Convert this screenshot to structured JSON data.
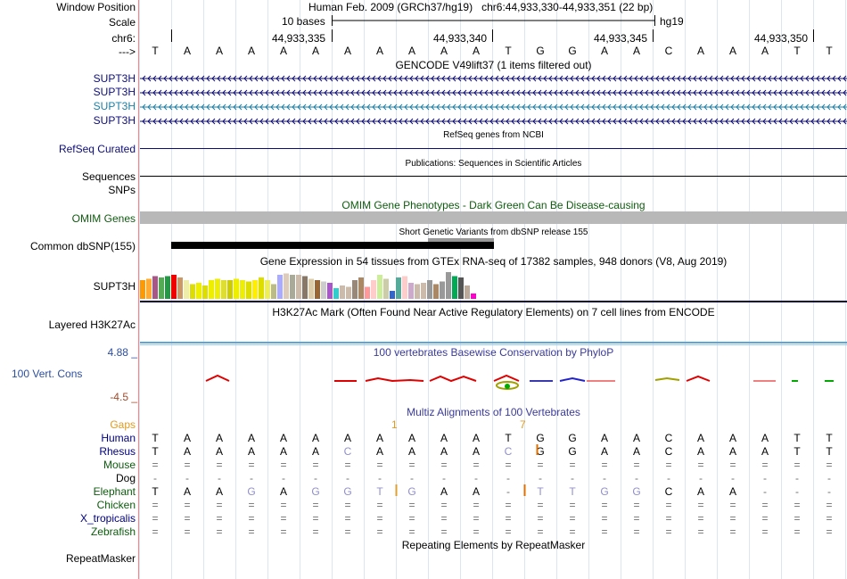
{
  "header": {
    "window_position_label": "Window Position",
    "window_position_text": "Human Feb. 2009 (GRCh37/hg19)   chr6:44,933,330-44,933,351 (22 bp)",
    "scale_label": "Scale",
    "scale_text": "10 bases",
    "assembly": "hg19",
    "chrom_label": "chr6:",
    "positions": [
      "44,933,335",
      "44,933,340",
      "44,933,345",
      "44,933,350"
    ],
    "strand_label": "--->"
  },
  "sequence": [
    "T",
    "A",
    "A",
    "A",
    "A",
    "A",
    "A",
    "A",
    "A",
    "A",
    "A",
    "T",
    "G",
    "G",
    "A",
    "A",
    "C",
    "A",
    "A",
    "A",
    "T",
    "T"
  ],
  "tracks": {
    "gencode": {
      "title": "GENCODE V49lift37 (1 items filtered out)",
      "genes": [
        {
          "name": "SUPT3H",
          "color": "#0c0c78"
        },
        {
          "name": "SUPT3H",
          "color": "#0c0c78"
        },
        {
          "name": "SUPT3H",
          "color": "#1a7fa6"
        },
        {
          "name": "SUPT3H",
          "color": "#0c0c78"
        }
      ]
    },
    "refseq": {
      "title": "RefSeq genes from NCBI",
      "label": "RefSeq Curated",
      "color": "#0c0c78"
    },
    "publications": {
      "title": "Publications: Sequences in Scientific Articles",
      "label": "Sequences"
    },
    "snps": {
      "label": "SNPs"
    },
    "omim": {
      "title": "OMIM Gene Phenotypes - Dark Green Can Be Disease-causing",
      "label": "OMIM Genes",
      "color": "#0f5b0f"
    },
    "dbsnp": {
      "title": "Short Genetic Variants from dbSNP release 155",
      "label": "Common dbSNP(155)"
    },
    "gtex": {
      "title": "Gene Expression in 54 tissues from GTEx RNA-seq of 17382 samples, 948 donors (V8, Aug 2019)",
      "label": "SUPT3H",
      "levels": [
        0.7,
        0.75,
        0.85,
        0.8,
        0.85,
        0.9,
        0.8,
        0.7,
        0.55,
        0.6,
        0.5,
        0.7,
        0.75,
        0.7,
        0.7,
        0.75,
        0.7,
        0.65,
        0.7,
        0.8,
        0.7,
        0.55,
        0.9,
        0.95,
        0.9,
        0.9,
        0.85,
        0.75,
        0.7,
        0.65,
        0.6,
        0.4,
        0.5,
        0.45,
        0.7,
        0.8,
        0.45,
        0.7,
        0.9,
        0.75,
        0.3,
        0.8,
        0.85,
        0.6,
        0.55,
        0.6,
        0.7,
        0.55,
        0.65,
        1.0,
        0.85,
        0.8,
        0.5,
        0.2
      ],
      "colors": [
        "#ff9900",
        "#ffaa33",
        "#aa5588",
        "#55aa55",
        "#229944",
        "#ee0000",
        "#cc9966",
        "#eeeeaa",
        "#dddd00",
        "#eeee00",
        "#dddd00",
        "#eeee00",
        "#eeee00",
        "#dddd33",
        "#cccc00",
        "#eeee00",
        "#eeee00",
        "#dddd00",
        "#ffee00",
        "#dddd00",
        "#eeee55",
        "#bbbb88",
        "#aaaaff",
        "#ddccbb",
        "#aaaa99",
        "#ccbbaa",
        "#887766",
        "#ddccaa",
        "#996633",
        "#cccccc",
        "#aa55cc",
        "#33cccc",
        "#ccbbaa",
        "#ccbbaa",
        "#998877",
        "#aa8866",
        "#ff9999",
        "#ffcccc",
        "#ccee99",
        "#ccccaa",
        "#3366cc",
        "#55aa99",
        "#ffcccc",
        "#ccaacc",
        "#ccbbaa",
        "#ccbbaa",
        "#999999",
        "#aa8866",
        "#999999",
        "#999999",
        "#00aa55",
        "#555555",
        "#bbaa99",
        "#ff00cc"
      ]
    },
    "h3k27ac": {
      "title": "H3K27Ac Mark (Often Found Near Active Regulatory Elements) on 7 cell lines from ENCODE",
      "label": "Layered H3K27Ac"
    },
    "phylop": {
      "title": "100 vertebrates Basewise Conservation by PhyloP",
      "label": "100 Vert. Cons",
      "max_label": "4.88 _",
      "min_label": "-4.5 _",
      "max_color": "#2c4ea0",
      "min_color": "#a04b2c"
    },
    "multiz": {
      "title": "Multiz Alignments of 100 Vertebrates",
      "gaps_label": "Gaps",
      "gap_marks": [
        {
          "text": "1",
          "index": 7
        },
        {
          "text": "7",
          "index": 11
        }
      ],
      "species": [
        {
          "name": "Human",
          "color": "#000080",
          "bases": [
            "T",
            "A",
            "A",
            "A",
            "A",
            "A",
            "A",
            "A",
            "A",
            "A",
            "A",
            "T",
            "G",
            "G",
            "A",
            "A",
            "C",
            "A",
            "A",
            "A",
            "T",
            "T"
          ]
        },
        {
          "name": "Rhesus",
          "color": "#000080",
          "bases": [
            "T",
            "A",
            "A",
            "A",
            "A",
            "A",
            "C",
            "A",
            "A",
            "A",
            "A",
            "C",
            "G",
            "G",
            "A",
            "A",
            "C",
            "A",
            "A",
            "A",
            "T",
            "T"
          ]
        },
        {
          "name": "Mouse",
          "color": "#0c5c0c",
          "bases": [
            "=",
            "=",
            "=",
            "=",
            "=",
            "=",
            "=",
            "=",
            "=",
            "=",
            "=",
            "=",
            "=",
            "=",
            "=",
            "=",
            "=",
            "=",
            "=",
            "=",
            "=",
            "="
          ]
        },
        {
          "name": "Dog",
          "color": "#000000",
          "bases": [
            "-",
            "-",
            "-",
            "-",
            "-",
            "-",
            "-",
            "-",
            "-",
            "-",
            "-",
            "-",
            "-",
            "-",
            "-",
            "-",
            "-",
            "-",
            "-",
            "-",
            "-",
            "-"
          ]
        },
        {
          "name": "Elephant",
          "color": "#0c5c0c",
          "bases": [
            "T",
            "A",
            "A",
            "G",
            "A",
            "G",
            "G",
            "T",
            "G",
            "A",
            "A",
            "-",
            "T",
            "T",
            "G",
            "G",
            "C",
            "A",
            "A",
            "-",
            "-",
            "-"
          ]
        },
        {
          "name": "Chicken",
          "color": "#0c5c0c",
          "bases": [
            "=",
            "=",
            "=",
            "=",
            "=",
            "=",
            "=",
            "=",
            "=",
            "=",
            "=",
            "=",
            "=",
            "=",
            "=",
            "=",
            "=",
            "=",
            "=",
            "=",
            "=",
            "="
          ]
        },
        {
          "name": "X_tropicalis",
          "color": "#000080",
          "bases": [
            "=",
            "=",
            "=",
            "=",
            "=",
            "=",
            "=",
            "=",
            "=",
            "=",
            "=",
            "=",
            "=",
            "=",
            "=",
            "=",
            "=",
            "=",
            "=",
            "=",
            "=",
            "="
          ]
        },
        {
          "name": "Zebrafish",
          "color": "#0c5c0c",
          "bases": [
            "=",
            "=",
            "=",
            "=",
            "=",
            "=",
            "=",
            "=",
            "=",
            "=",
            "=",
            "=",
            "=",
            "=",
            "=",
            "=",
            "=",
            "=",
            "=",
            "=",
            "=",
            "="
          ]
        }
      ]
    },
    "repeatmasker": {
      "title": "Repeating Elements by RepeatMasker",
      "label": "RepeatMasker"
    }
  }
}
